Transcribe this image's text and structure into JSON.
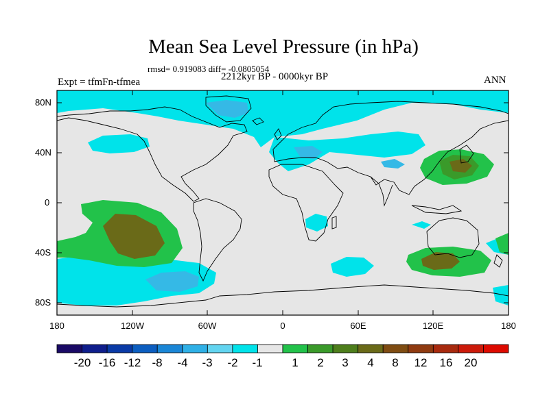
{
  "title": "Mean Sea Level Pressure (in hPa)",
  "stats_line": "rmsd= 0.919083 diff= -0.0805054",
  "period": "2212kyr BP - 0000kyr BP",
  "experiment": "Expt = tfmFn-tfmea",
  "season": "ANN",
  "lat_labels": [
    "80N",
    "40N",
    "0",
    "40S",
    "80S"
  ],
  "lon_labels": [
    "180",
    "120W",
    "60W",
    "0",
    "60E",
    "120E",
    "180"
  ],
  "colorbar": {
    "colors": [
      "#1a0a66",
      "#0f1e8c",
      "#0a3aa6",
      "#0c5ec0",
      "#1a86d6",
      "#2fb0e6",
      "#62d4f0",
      "#00e3ea",
      "#e6e6e6",
      "#22c24a",
      "#3a9a2a",
      "#4e7e1c",
      "#6a6a18",
      "#7f4c12",
      "#8f3a10",
      "#a82a0e",
      "#cc1a0a",
      "#dd0a00"
    ],
    "labels": [
      "-20",
      "-16",
      "-12",
      "-8",
      "-4",
      "-3",
      "-2",
      "-1",
      "1",
      "2",
      "3",
      "4",
      "8",
      "12",
      "16",
      "20"
    ]
  },
  "colors": {
    "background": "#e6e6e6",
    "neg_light": "#00e3ea",
    "neg_mid": "#35b9e6",
    "neg_dark": "#1b92d5",
    "pos_light": "#22c24a",
    "pos_mid": "#3a9a2a",
    "pos_dark": "#6a6a18"
  }
}
